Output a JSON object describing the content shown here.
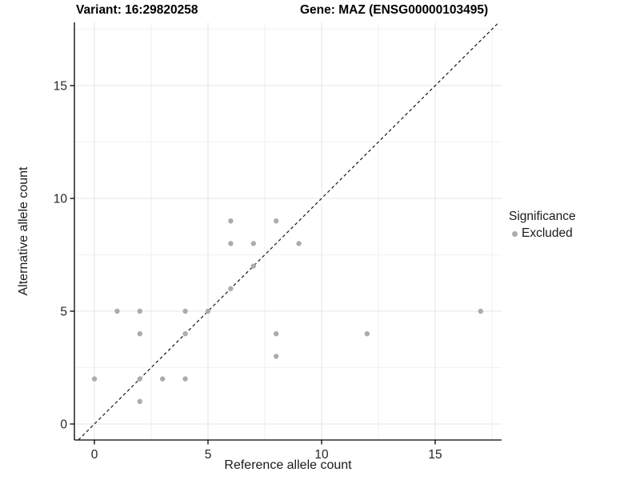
{
  "titles": {
    "variant": "Variant: 16:29820258",
    "gene": "Gene: MAZ (ENSG00000103495)"
  },
  "chart_data": {
    "type": "scatter",
    "xlabel": "Reference allele count",
    "ylabel": "Alternative allele count",
    "x_ticks": [
      0,
      5,
      10,
      15
    ],
    "y_ticks": [
      0,
      5,
      10,
      15
    ],
    "minor_ticks": [
      2.5,
      7.5,
      12.5,
      17.5
    ],
    "xlim": [
      -0.88,
      17.92
    ],
    "ylim": [
      -0.71,
      17.8
    ],
    "grid": "major+minor",
    "identity_line": {
      "equation": "y = x",
      "style": "dashed",
      "color": "#1a1a1a"
    },
    "series": [
      {
        "name": "Excluded",
        "color": "#acacac",
        "points": [
          [
            0,
            2
          ],
          [
            1,
            5
          ],
          [
            2,
            1
          ],
          [
            2,
            2
          ],
          [
            2,
            4
          ],
          [
            2,
            5
          ],
          [
            3,
            2
          ],
          [
            4,
            2
          ],
          [
            4,
            4
          ],
          [
            4,
            5
          ],
          [
            5,
            5
          ],
          [
            6,
            6
          ],
          [
            6,
            8
          ],
          [
            6,
            9
          ],
          [
            7,
            7
          ],
          [
            7,
            8
          ],
          [
            8,
            3
          ],
          [
            8,
            4
          ],
          [
            8,
            9
          ],
          [
            9,
            8
          ],
          [
            12,
            4
          ],
          [
            17,
            5
          ]
        ]
      }
    ],
    "legend": {
      "title": "Significance",
      "position": "right",
      "items": [
        {
          "label": "Excluded",
          "color": "#acacac"
        }
      ]
    },
    "colors": {
      "major_grid": "#e4e4e4",
      "minor_grid": "#f2f2f2",
      "axis": "#000000",
      "tick_text": "#262626"
    }
  }
}
